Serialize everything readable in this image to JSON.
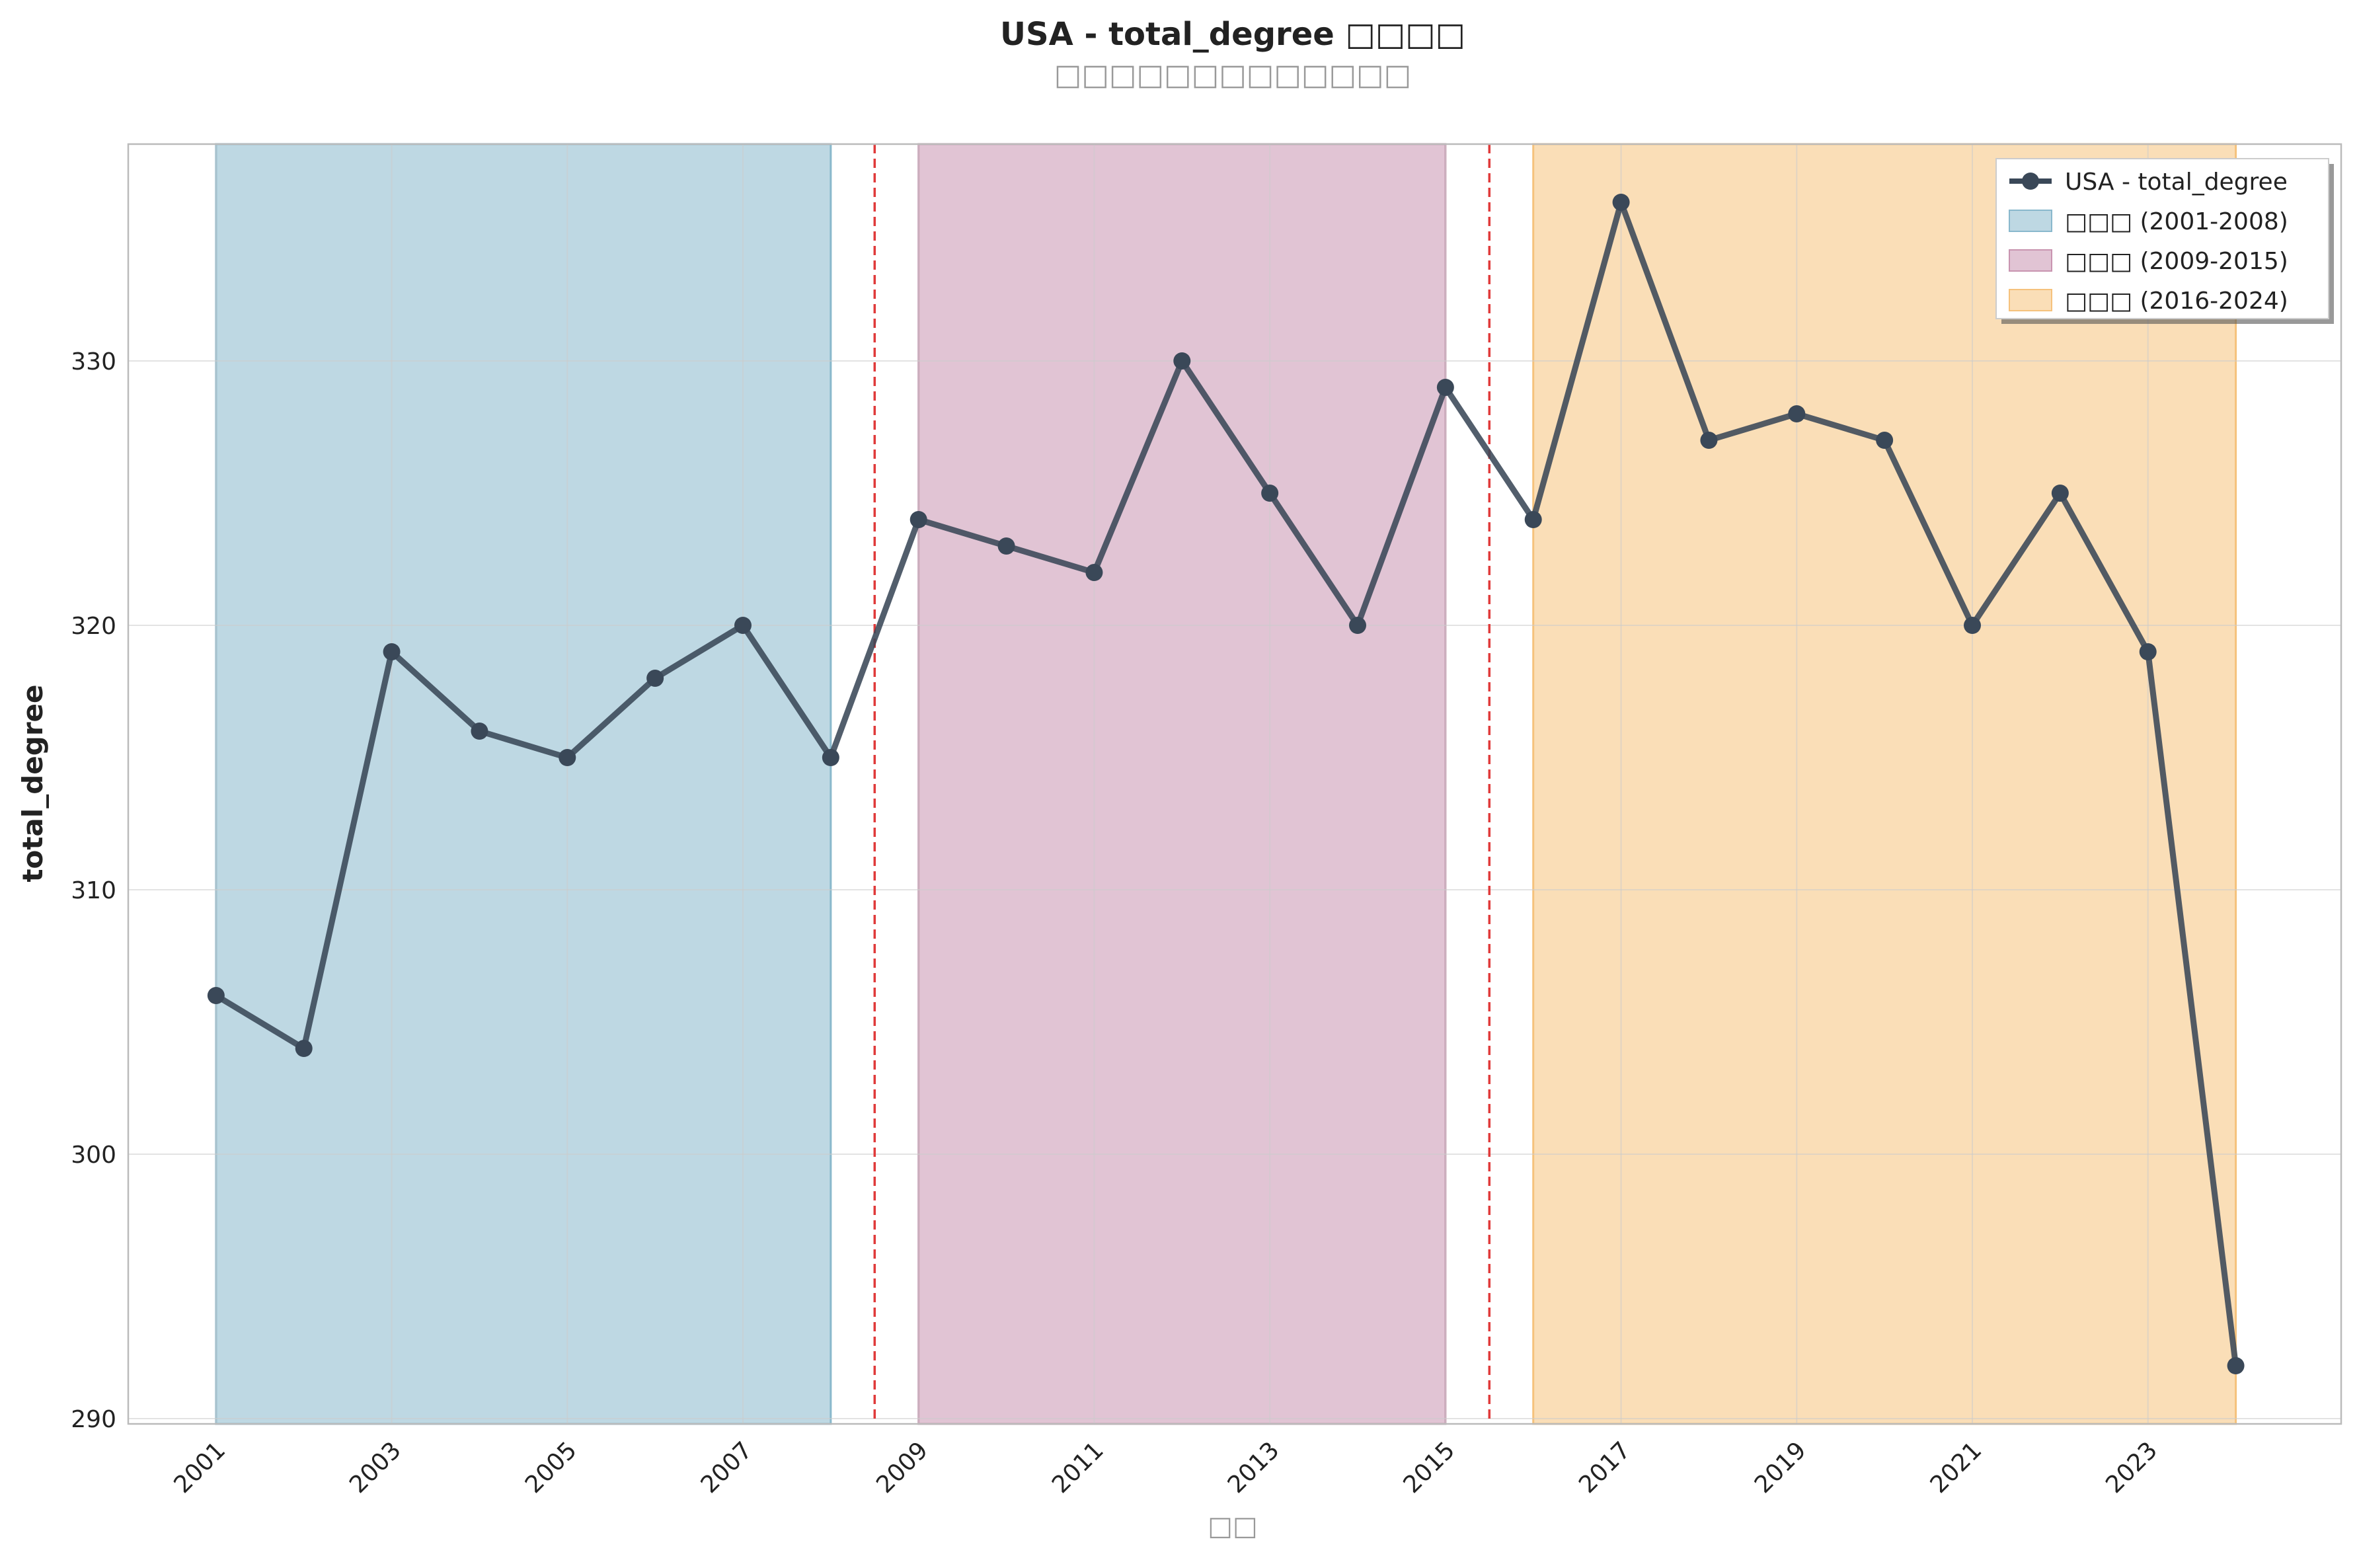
{
  "chart_data": {
    "type": "line",
    "title": "USA - total_degree □□□□",
    "subtitle": "□□□□□□□□□□□□□",
    "xlabel": "□□",
    "ylabel": "total_degree",
    "x": [
      2001,
      2002,
      2003,
      2004,
      2005,
      2006,
      2007,
      2008,
      2009,
      2010,
      2011,
      2012,
      2013,
      2014,
      2015,
      2016,
      2017,
      2018,
      2019,
      2020,
      2021,
      2022,
      2023,
      2024
    ],
    "series": [
      {
        "name": "USA - total_degree",
        "color": "#3a4858",
        "values": [
          306,
          304,
          319,
          316,
          315,
          318,
          320,
          315,
          324,
          323,
          322,
          330,
          325,
          320,
          329,
          324,
          336,
          327,
          328,
          327,
          320,
          325,
          319,
          292
        ]
      }
    ],
    "xticks": [
      2001,
      2003,
      2005,
      2007,
      2009,
      2011,
      2013,
      2015,
      2017,
      2019,
      2021,
      2023
    ],
    "yticks": [
      290,
      300,
      310,
      320,
      330
    ],
    "xlim": [
      2000,
      2025.2
    ],
    "ylim": [
      289.8,
      338.2
    ],
    "grid": true,
    "legend_position": "top-right",
    "periods": [
      {
        "label": "□□□ (2001-2008)",
        "start": 2001,
        "end": 2008,
        "color": "#89b8cc"
      },
      {
        "label": "□□□ (2009-2015)",
        "start": 2009,
        "end": 2015,
        "color": "#c894b0"
      },
      {
        "label": "□□□ (2016-2024)",
        "start": 2016,
        "end": 2024,
        "color": "#f5c27c"
      }
    ],
    "dividers": [
      2008.5,
      2015.5
    ],
    "divider_color": "#e03a3a"
  }
}
